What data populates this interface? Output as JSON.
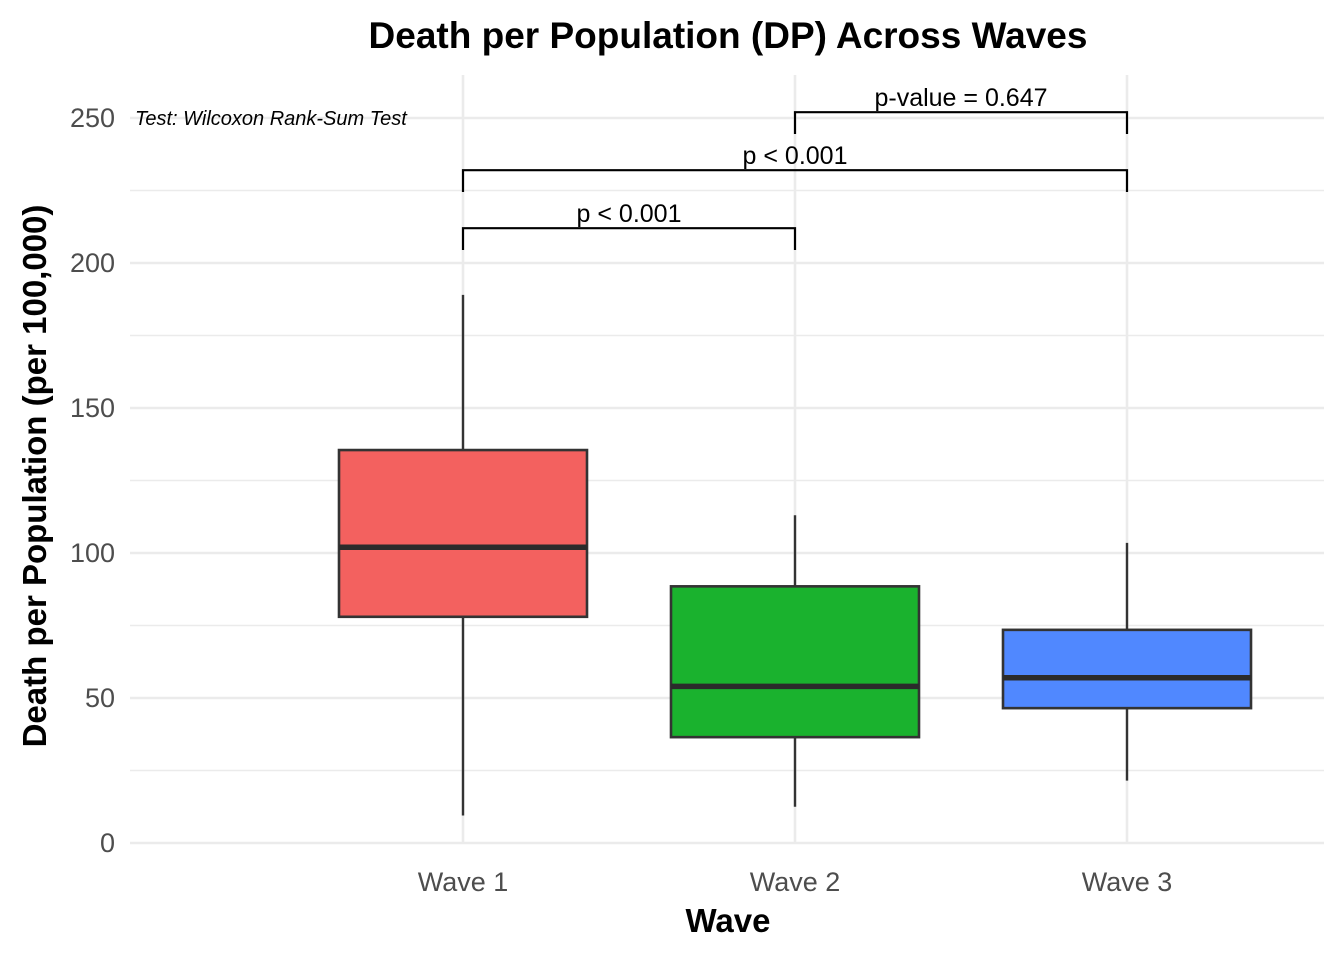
{
  "chart_data": {
    "type": "box",
    "title": "Death per Population (DP) Across Waves",
    "xlabel": "Wave",
    "ylabel": "Death per Population (per 100,000)",
    "ylim": [
      0,
      260
    ],
    "yticks": [
      0,
      50,
      100,
      150,
      200,
      250
    ],
    "grid": true,
    "legend": "none",
    "annotation": "Test: Wilcoxon Rank-Sum Test",
    "categories": [
      "Wave 1",
      "Wave 2",
      "Wave 3"
    ],
    "boxes": [
      {
        "category": "Wave 1",
        "min": 9.5,
        "q1": 78,
        "median": 102,
        "q3": 135.5,
        "max": 189,
        "color": "#F3615F"
      },
      {
        "category": "Wave 2",
        "min": 12.5,
        "q1": 36.5,
        "median": 54,
        "q3": 88.5,
        "max": 113,
        "color": "#1AB22E"
      },
      {
        "category": "Wave 3",
        "min": 21.5,
        "q1": 46.5,
        "median": 57,
        "q3": 73.5,
        "max": 103.5,
        "color": "#5088FF"
      }
    ],
    "comparisons": [
      {
        "from": "Wave 1",
        "to": "Wave 2",
        "label": "p < 0.001",
        "y": 212,
        "tip_y": 204.5
      },
      {
        "from": "Wave 1",
        "to": "Wave 3",
        "label": "p < 0.001",
        "y": 232,
        "tip_y": 224.5
      },
      {
        "from": "Wave 2",
        "to": "Wave 3",
        "label": "p-value = 0.647",
        "y": 252,
        "tip_y": 244.5
      }
    ]
  }
}
